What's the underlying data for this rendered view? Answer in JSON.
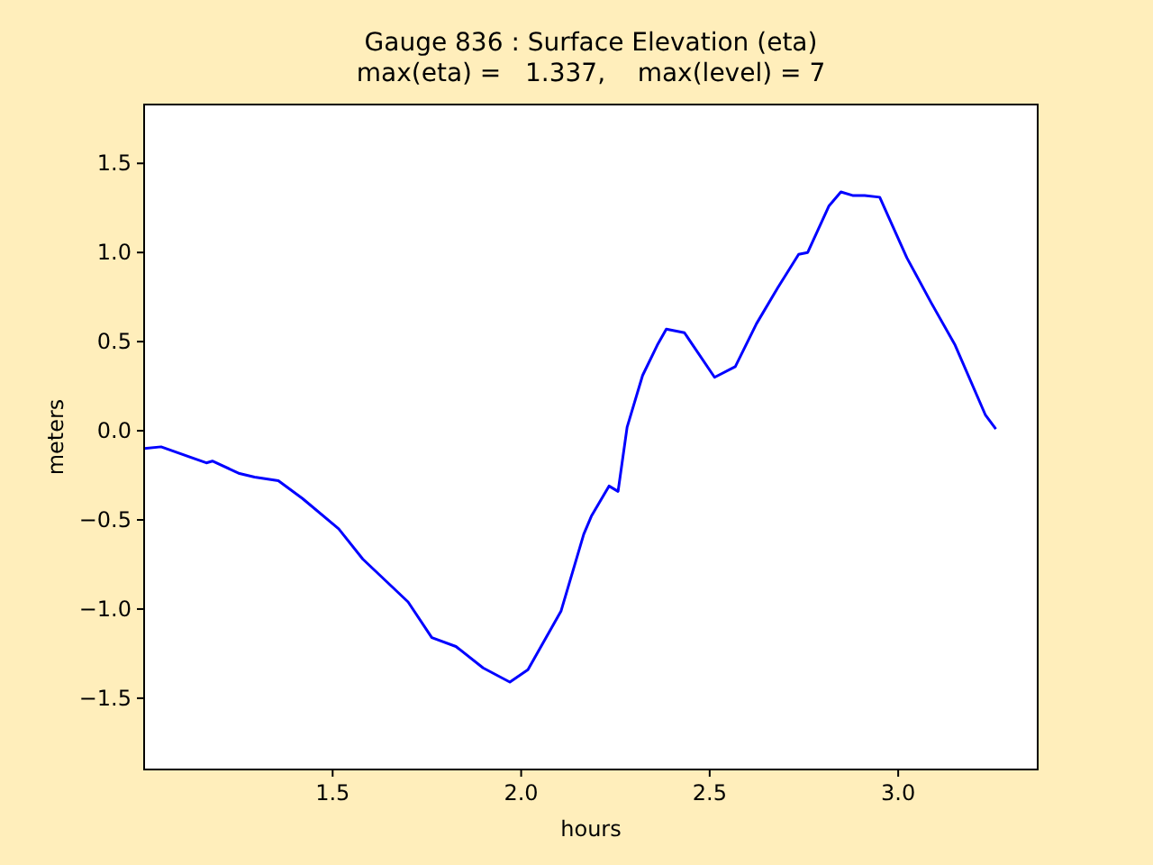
{
  "chart_data": {
    "type": "line",
    "title": "Gauge 836 : Surface Elevation (eta)\nmax(eta) =   1.337,    max(level) = 7",
    "xlabel": "hours",
    "ylabel": "meters",
    "xlim": [
      1.0,
      3.37
    ],
    "xticks": [
      1.5,
      {
        "value": 2,
        "label": "2.0"
      },
      2.5,
      {
        "value": 3,
        "label": "3.0"
      }
    ],
    "ylim": [
      -1.9,
      1.83
    ],
    "yticks": [
      {
        "value": -1.5,
        "label": "−1.5"
      },
      {
        "value": -1,
        "label": "−1.0"
      },
      {
        "value": -0.5,
        "label": "−0.5"
      },
      {
        "value": 0,
        "label": "0.0"
      },
      1.5,
      {
        "value": 1,
        "label": "1.0"
      },
      0.5
    ],
    "series": [
      {
        "color": "#0000ff",
        "x": [
          1.0,
          1.045,
          1.165,
          1.181,
          1.253,
          1.293,
          1.356,
          1.42,
          1.516,
          1.58,
          1.7,
          1.763,
          1.827,
          1.899,
          1.97,
          2.018,
          2.106,
          2.166,
          2.186,
          2.233,
          2.257,
          2.281,
          2.322,
          2.361,
          2.385,
          2.433,
          2.513,
          2.568,
          2.624,
          2.68,
          2.736,
          2.76,
          2.816,
          2.848,
          2.879,
          2.911,
          2.951,
          3.023,
          3.087,
          3.151,
          3.231,
          3.259
        ],
        "values": [
          -0.1,
          -0.09,
          -0.18,
          -0.17,
          -0.24,
          -0.26,
          -0.28,
          -0.38,
          -0.55,
          -0.72,
          -0.96,
          -1.16,
          -1.21,
          -1.33,
          -1.41,
          -1.34,
          -1.01,
          -0.58,
          -0.48,
          -0.31,
          -0.34,
          0.02,
          0.31,
          0.48,
          0.57,
          0.55,
          0.3,
          0.36,
          0.6,
          0.8,
          0.99,
          1.0,
          1.26,
          1.34,
          1.32,
          1.32,
          1.31,
          0.97,
          0.72,
          0.48,
          0.09,
          0.01
        ]
      }
    ]
  }
}
